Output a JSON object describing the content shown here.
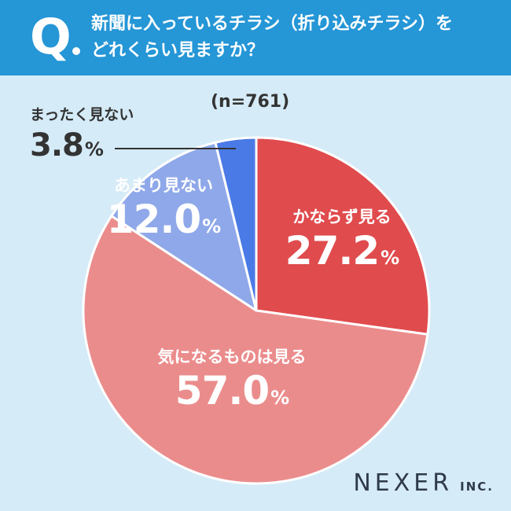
{
  "header": {
    "q_letter": "Q",
    "question_line1": "新聞に入っているチラシ（折り込みチラシ）を",
    "question_line2": "どれくらい見ますか？"
  },
  "sample_label": "(n=761)",
  "logo": {
    "main": "NEXER",
    "sub": "INC."
  },
  "colors": {
    "header_bg": "#2596d6",
    "page_bg": "#d5ebf7",
    "always": "#e04b4d",
    "sometimes": "#eb8c8c",
    "rarely": "#8fa8e9",
    "never": "#4a7ae6"
  },
  "chart_data": {
    "type": "pie",
    "title": "新聞に入っているチラシ（折り込みチラシ）をどれくらい見ますか？",
    "sample": "n=761",
    "unit": "%",
    "slices": [
      {
        "label": "かならず見る",
        "value": 27.2,
        "value_text": "27.2",
        "color": "#e04b4d"
      },
      {
        "label": "気になるものは見る",
        "value": 57.0,
        "value_text": "57.0",
        "color": "#eb8c8c"
      },
      {
        "label": "あまり見ない",
        "value": 12.0,
        "value_text": "12.0",
        "color": "#8fa8e9"
      },
      {
        "label": "まったく見ない",
        "value": 3.8,
        "value_text": "3.8",
        "color": "#4a7ae6"
      }
    ]
  }
}
